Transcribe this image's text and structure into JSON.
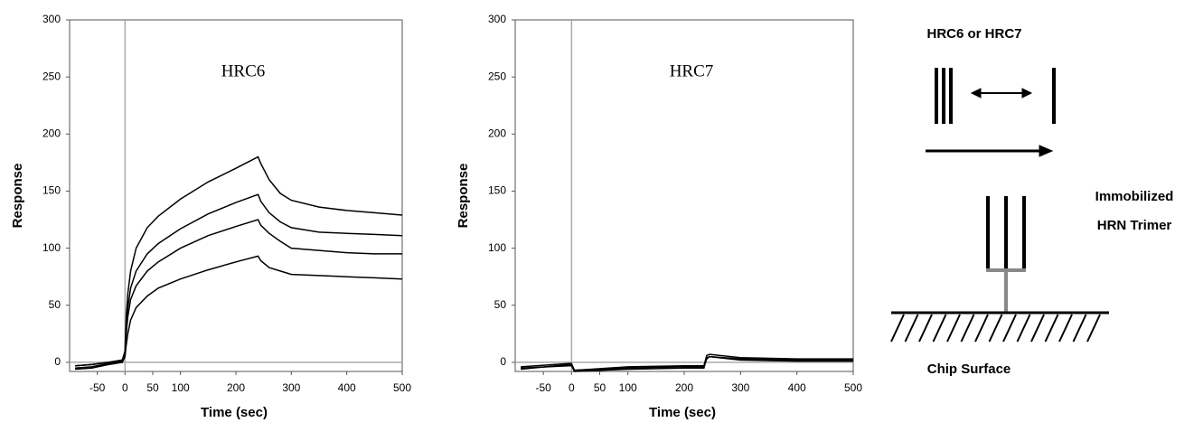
{
  "chart_data": [
    {
      "type": "line",
      "title": "HRC6",
      "xlabel": "Time (sec)",
      "ylabel": "Response",
      "xlim": [
        -100,
        500
      ],
      "ylim": [
        -8,
        300
      ],
      "xticks": [
        -50,
        0,
        50,
        100,
        200,
        300,
        400,
        500
      ],
      "yticks": [
        0,
        50,
        100,
        150,
        200,
        250,
        300
      ],
      "xline": 0,
      "yline": 0,
      "x": [
        -90,
        -60,
        -30,
        -5,
        0,
        2,
        5,
        10,
        20,
        40,
        60,
        100,
        150,
        200,
        240,
        245,
        260,
        280,
        300,
        350,
        400,
        450,
        500
      ],
      "series": [
        {
          "color": "#000000",
          "values": [
            -3,
            -2,
            0,
            2,
            10,
            40,
            60,
            80,
            100,
            118,
            128,
            143,
            158,
            170,
            180,
            174,
            160,
            148,
            142,
            136,
            133,
            131,
            129
          ]
        },
        {
          "color": "#000000",
          "values": [
            -3,
            -2,
            0,
            2,
            8,
            30,
            48,
            65,
            80,
            95,
            104,
            117,
            130,
            140,
            147,
            141,
            131,
            123,
            118,
            114,
            113,
            112,
            111
          ]
        },
        {
          "color": "#000000",
          "values": [
            -5,
            -4,
            -1,
            1,
            7,
            25,
            40,
            55,
            67,
            80,
            88,
            100,
            111,
            119,
            125,
            120,
            113,
            106,
            100,
            98,
            96,
            95,
            95
          ]
        },
        {
          "color": "#000000",
          "values": [
            -6,
            -5,
            -2,
            0,
            5,
            15,
            25,
            37,
            48,
            58,
            65,
            73,
            81,
            88,
            93,
            89,
            83,
            80,
            77,
            76,
            75,
            74,
            73
          ]
        }
      ]
    },
    {
      "type": "line",
      "title": "HRC7",
      "xlabel": "Time (sec)",
      "ylabel": "Response",
      "xlim": [
        -100,
        500
      ],
      "ylim": [
        -8,
        300
      ],
      "xticks": [
        -50,
        0,
        50,
        100,
        200,
        300,
        400,
        500
      ],
      "yticks": [
        0,
        50,
        100,
        150,
        200,
        250,
        300
      ],
      "xline": 0,
      "yline": 0,
      "x": [
        -90,
        -5,
        0,
        5,
        100,
        200,
        235,
        240,
        245,
        300,
        400,
        500
      ],
      "series": [
        {
          "color": "#000000",
          "values": [
            -4,
            -1,
            -1,
            -7,
            -4,
            -3,
            -3,
            6,
            7,
            4,
            3,
            3
          ]
        },
        {
          "color": "#000000",
          "values": [
            -6,
            -2,
            -2,
            -7,
            -5,
            -4,
            -4,
            3,
            5,
            3,
            2,
            2
          ]
        },
        {
          "color": "#000000",
          "values": [
            -5,
            -3,
            -3,
            -8,
            -6,
            -5,
            -5,
            4,
            5,
            2,
            1,
            1
          ]
        }
      ]
    }
  ],
  "diagram": {
    "analyte": "HRC6 or HRC7",
    "ligand_line1": "Immobilized",
    "ligand_line2": "HRN Trimer",
    "surface": "Chip Surface"
  }
}
